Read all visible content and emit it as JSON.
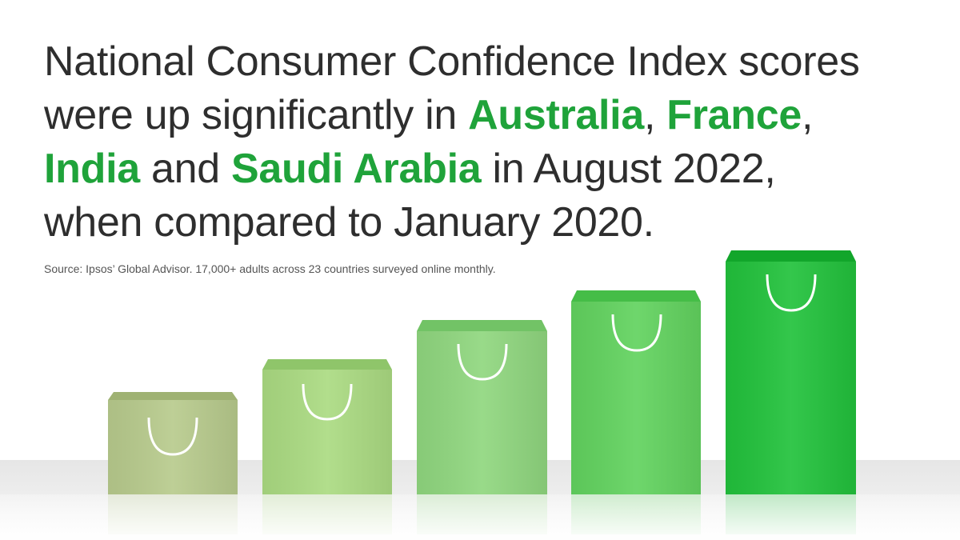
{
  "headline": {
    "lines": [
      [
        {
          "text": "National Consumer Confidence Index scores",
          "highlight": false
        }
      ],
      [
        {
          "text": "were up significantly in ",
          "highlight": false
        },
        {
          "text": "Australia",
          "highlight": true
        },
        {
          "text": ", ",
          "highlight": false
        },
        {
          "text": "France",
          "highlight": true
        },
        {
          "text": ",",
          "highlight": false
        }
      ],
      [
        {
          "text": "India",
          "highlight": true
        },
        {
          "text": " and ",
          "highlight": false
        },
        {
          "text": "Saudi Arabia",
          "highlight": true
        },
        {
          "text": " in August 2022,",
          "highlight": false
        }
      ],
      [
        {
          "text": "when compared to January 2020.",
          "highlight": false
        }
      ]
    ]
  },
  "source": "Source: Ipsos’ Global Advisor. 17,000+ adults across 23 countries surveyed online monthly."
}
